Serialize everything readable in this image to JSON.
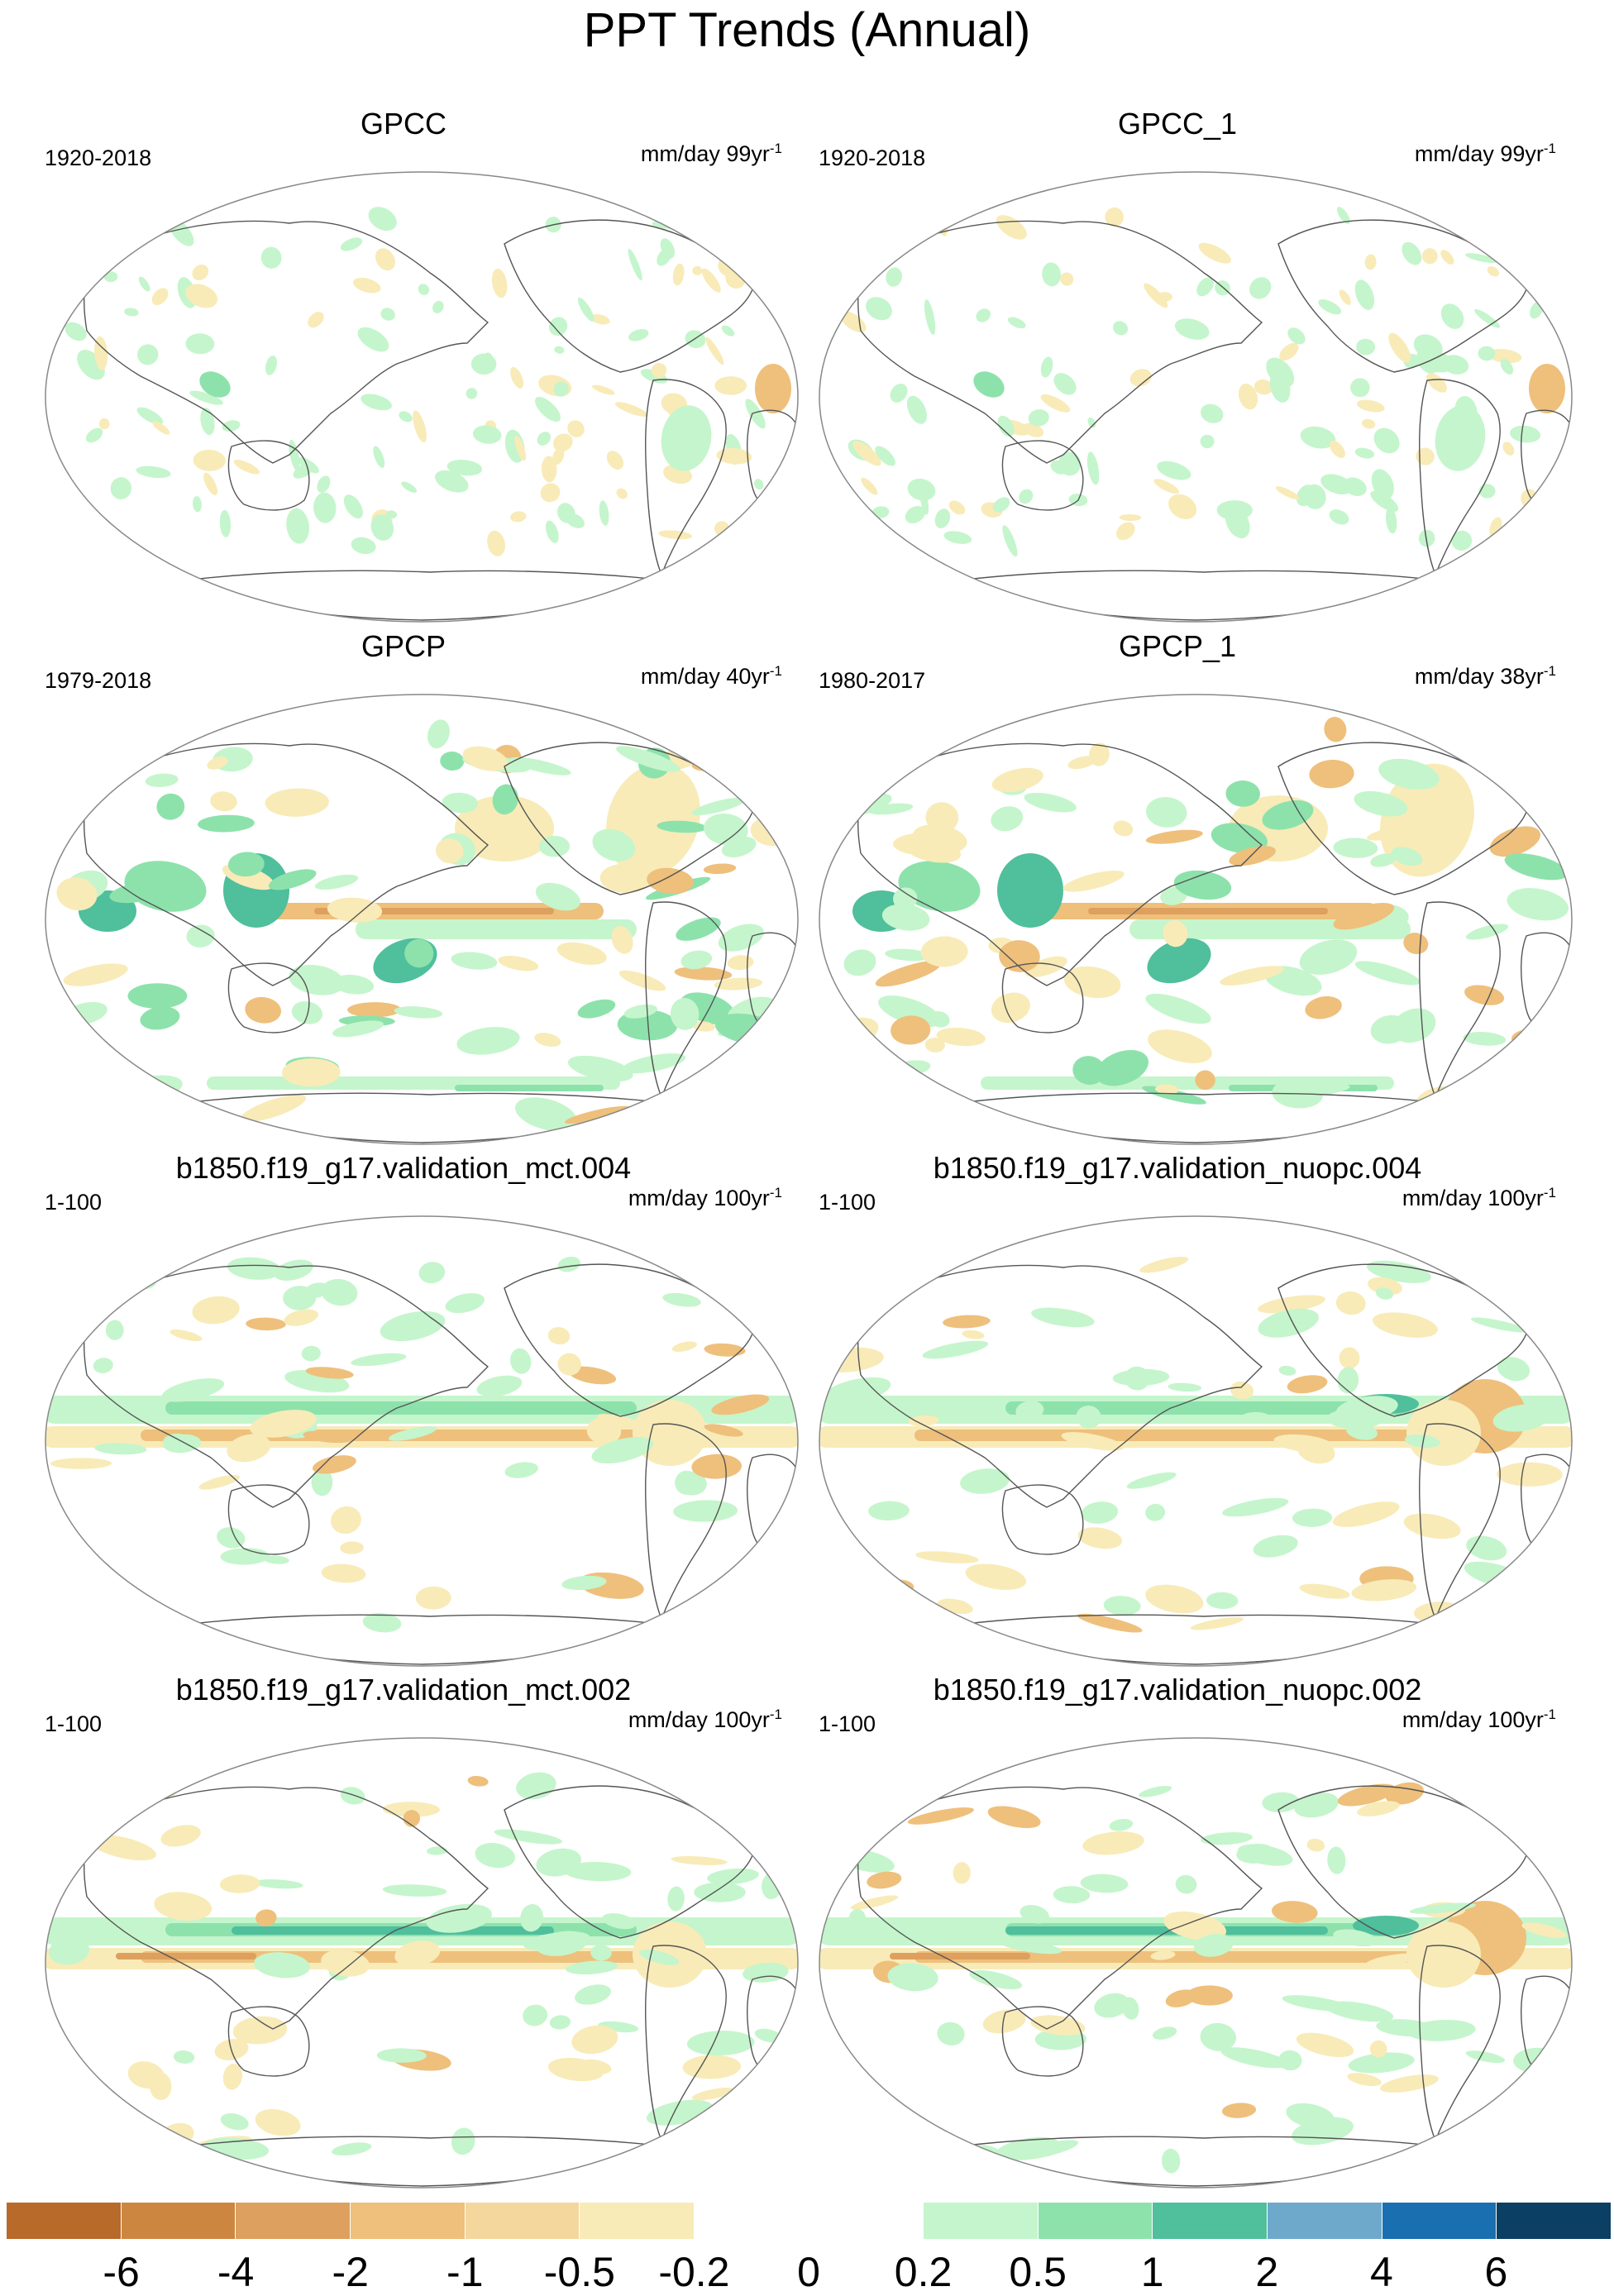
{
  "figure": {
    "title": "PPT Trends (Annual)"
  },
  "panels": [
    {
      "title": "GPCC",
      "period": "1920-2018",
      "units": "mm/day 99yr",
      "units_sup": "-1",
      "style": "sparse"
    },
    {
      "title": "GPCC_1",
      "period": "1920-2018",
      "units": "mm/day 99yr",
      "units_sup": "-1",
      "style": "sparse"
    },
    {
      "title": "GPCP",
      "period": "1979-2018",
      "units": "mm/day 40yr",
      "units_sup": "-1",
      "style": "dense"
    },
    {
      "title": "GPCP_1",
      "period": "1980-2017",
      "units": "mm/day 38yr",
      "units_sup": "-1",
      "style": "dense"
    },
    {
      "title": "b1850.f19_g17.validation_mct.004",
      "period": "1-100",
      "units": "mm/day 100yr",
      "units_sup": "-1",
      "style": "model"
    },
    {
      "title": "b1850.f19_g17.validation_nuopc.004",
      "period": "1-100",
      "units": "mm/day 100yr",
      "units_sup": "-1",
      "style": "model"
    },
    {
      "title": "b1850.f19_g17.validation_mct.002",
      "period": "1-100",
      "units": "mm/day 100yr",
      "units_sup": "-1",
      "style": "model"
    },
    {
      "title": "b1850.f19_g17.validation_nuopc.002",
      "period": "1-100",
      "units": "mm/day 100yr",
      "units_sup": "-1",
      "style": "model"
    }
  ],
  "colorbar": {
    "colors": [
      "#b86a2a",
      "#cd8640",
      "#dea05e",
      "#eec07c",
      "#f3d79d",
      "#f8ebb8",
      "#ffffff",
      "#ffffff",
      "#c5f5cc",
      "#8de2ac",
      "#4fbf9c",
      "#6ea9cc",
      "#1a6fb0",
      "#0b3f63"
    ],
    "tick_labels": [
      "-6",
      "-4",
      "-2",
      "-1",
      "-0.5",
      "-0.2",
      "0",
      "0.2",
      "0.5",
      "1",
      "2",
      "4",
      "6"
    ]
  },
  "palette": {
    "dry_strong": "#dea05e",
    "dry": "#eec07c",
    "dry_light": "#f8ebb8",
    "wet_light": "#c5f5cc",
    "wet": "#8de2ac",
    "wet_strong": "#4fbf9c",
    "coast": "#555555",
    "frame": "#888888"
  }
}
